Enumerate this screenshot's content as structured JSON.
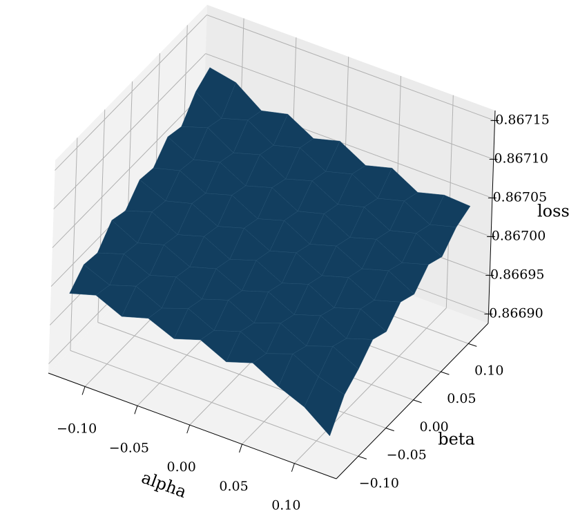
{
  "chart_data": {
    "type": "surface",
    "x_label": "alpha",
    "y_label": "beta",
    "z_label": "loss",
    "color": "#123e5f",
    "x": [
      -0.125,
      -0.1,
      -0.075,
      -0.05,
      -0.025,
      0.0,
      0.025,
      0.05,
      0.075,
      0.1,
      0.125
    ],
    "y": [
      -0.125,
      -0.1,
      -0.075,
      -0.05,
      -0.025,
      0.0,
      0.025,
      0.05,
      0.075,
      0.1,
      0.125
    ],
    "z": [
      [
        0.866985,
        0.867004,
        0.867001,
        0.867025,
        0.867019,
        0.867041,
        0.867038,
        0.86706,
        0.867055,
        0.867082,
        0.867095
      ],
      [
        0.866995,
        0.86699,
        0.867012,
        0.867008,
        0.86703,
        0.867026,
        0.867047,
        0.867043,
        0.867066,
        0.86706,
        0.867088
      ],
      [
        0.86698,
        0.867001,
        0.866997,
        0.867018,
        0.867013,
        0.867035,
        0.86703,
        0.867052,
        0.867046,
        0.86707,
        0.867064
      ],
      [
        0.86699,
        0.866985,
        0.867007,
        0.867002,
        0.867023,
        0.867018,
        0.86704,
        0.867034,
        0.867056,
        0.86705,
        0.867072
      ],
      [
        0.866976,
        0.866997,
        0.866991,
        0.867012,
        0.867006,
        0.867028,
        0.867022,
        0.867044,
        0.867037,
        0.867059,
        0.867053
      ],
      [
        0.866987,
        0.866981,
        0.867002,
        0.866996,
        0.867017,
        0.867011,
        0.867032,
        0.867026,
        0.867047,
        0.867041,
        0.867062
      ],
      [
        0.866971,
        0.866992,
        0.866985,
        0.867007,
        0.867,
        0.867021,
        0.867014,
        0.867035,
        0.867029,
        0.86705,
        0.867043
      ],
      [
        0.866982,
        0.866976,
        0.866997,
        0.86699,
        0.867011,
        0.867004,
        0.867024,
        0.867017,
        0.867038,
        0.867031,
        0.867052
      ],
      [
        0.866964,
        0.866988,
        0.86698,
        0.867001,
        0.866993,
        0.867014,
        0.867007,
        0.867027,
        0.86702,
        0.86704,
        0.867033
      ],
      [
        0.86695,
        0.866971,
        0.866992,
        0.866984,
        0.867004,
        0.866997,
        0.867017,
        0.867009,
        0.867029,
        0.867022,
        0.867042
      ],
      [
        0.866925,
        0.86696,
        0.866975,
        0.866995,
        0.866987,
        0.867007,
        0.866999,
        0.867019,
        0.867011,
        0.867031,
        0.86704
      ]
    ],
    "xlim": [
      -0.135,
      0.14
    ],
    "ylim": [
      -0.14,
      0.136
    ],
    "zlim": [
      0.866888,
      0.867163
    ],
    "xticks": [
      {
        "value": -0.1,
        "label": "−0.10"
      },
      {
        "value": -0.05,
        "label": "−0.05"
      },
      {
        "value": 0.0,
        "label": "0.00"
      },
      {
        "value": 0.05,
        "label": "0.05"
      },
      {
        "value": 0.1,
        "label": "0.10"
      }
    ],
    "yticks": [
      {
        "value": -0.1,
        "label": "−0.10"
      },
      {
        "value": -0.05,
        "label": "−0.05"
      },
      {
        "value": 0.0,
        "label": "0.00"
      },
      {
        "value": 0.05,
        "label": "0.05"
      },
      {
        "value": 0.1,
        "label": "0.10"
      }
    ],
    "zticks": [
      {
        "value": 0.8669,
        "label": "0.86690"
      },
      {
        "value": 0.86695,
        "label": "0.86695"
      },
      {
        "value": 0.867,
        "label": "0.86700"
      },
      {
        "value": 0.86705,
        "label": "0.86705"
      },
      {
        "value": 0.8671,
        "label": "0.86710"
      },
      {
        "value": 0.86715,
        "label": "0.86715"
      }
    ],
    "grid": true
  }
}
